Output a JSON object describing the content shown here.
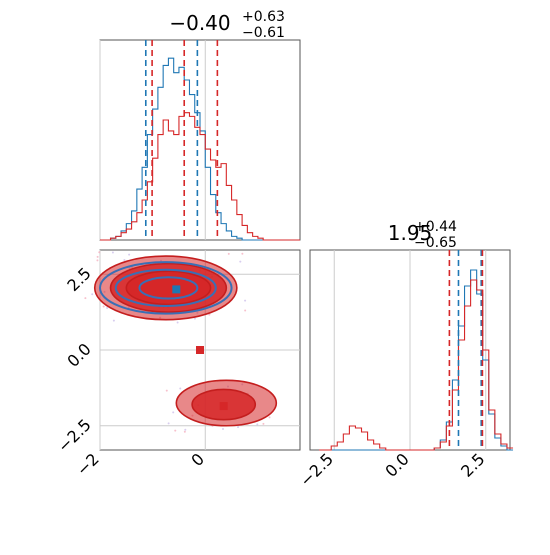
{
  "chart_data": {
    "type": "corner",
    "parameters": 2,
    "colors": {
      "series_a": "#d62728",
      "series_b": "#1f77b4"
    },
    "grid": true,
    "panels": {
      "hist_x": {
        "title_main": "−0.40",
        "title_plus": "+0.63",
        "title_minus": "−0.61",
        "xlim": [
          -2.0,
          1.8
        ],
        "vlines_a": [
          -1.01,
          -0.4,
          0.23
        ],
        "vlines_b": [
          -1.13,
          -0.15
        ],
        "series_a": {
          "x": [
            -2.0,
            -1.9,
            -1.8,
            -1.7,
            -1.6,
            -1.5,
            -1.4,
            -1.3,
            -1.2,
            -1.1,
            -1.0,
            -0.9,
            -0.8,
            -0.7,
            -0.6,
            -0.5,
            -0.4,
            -0.3,
            -0.2,
            -0.1,
            0.0,
            0.1,
            0.2,
            0.3,
            0.4,
            0.5,
            0.6,
            0.7,
            0.8,
            0.9,
            1.0,
            1.1,
            1.2,
            1.3,
            1.4,
            1.5,
            1.6,
            1.7
          ],
          "y": [
            0,
            0,
            1,
            2,
            4,
            6,
            10,
            15,
            22,
            32,
            45,
            58,
            66,
            60,
            58,
            68,
            70,
            68,
            62,
            58,
            50,
            44,
            40,
            42,
            30,
            22,
            14,
            8,
            4,
            2,
            1,
            0,
            0,
            0,
            0,
            0,
            0,
            0
          ]
        },
        "series_b": {
          "x": [
            -2.0,
            -1.9,
            -1.8,
            -1.7,
            -1.6,
            -1.5,
            -1.4,
            -1.3,
            -1.2,
            -1.1,
            -1.0,
            -0.9,
            -0.8,
            -0.7,
            -0.6,
            -0.5,
            -0.4,
            -0.3,
            -0.2,
            -0.1,
            0.0,
            0.1,
            0.2,
            0.3,
            0.4,
            0.5,
            0.6,
            0.7,
            0.8,
            0.9,
            1.0,
            1.1,
            1.2,
            1.3,
            1.4,
            1.5,
            1.6,
            1.7
          ],
          "y": [
            0,
            0,
            1,
            2,
            5,
            9,
            16,
            28,
            40,
            58,
            72,
            84,
            96,
            100,
            92,
            95,
            88,
            80,
            70,
            60,
            40,
            25,
            15,
            9,
            5,
            2,
            1,
            0,
            0,
            0,
            0,
            0,
            0,
            0,
            0,
            0,
            0,
            0
          ]
        }
      },
      "hist_y": {
        "title_main": "1.95",
        "title_plus": "+0.44",
        "title_minus": "−0.65",
        "xlim": [
          -3.3,
          3.3
        ],
        "tick_labels": [
          "−2.5",
          "0.0",
          "2.5"
        ],
        "ticks": [
          -2.5,
          0.0,
          2.5
        ],
        "vlines_a": [
          1.3,
          2.39
        ],
        "vlines_b": [
          1.6,
          2.35
        ],
        "series_a": {
          "x": [
            -3.0,
            -2.8,
            -2.6,
            -2.4,
            -2.2,
            -2.0,
            -1.8,
            -1.6,
            -1.4,
            -1.2,
            -1.0,
            -0.8,
            -0.6,
            -0.4,
            -0.2,
            0.0,
            0.2,
            0.4,
            0.6,
            0.8,
            1.0,
            1.2,
            1.4,
            1.6,
            1.8,
            2.0,
            2.2,
            2.4,
            2.6,
            2.8,
            3.0,
            3.2
          ],
          "y": [
            0,
            0,
            2,
            4,
            8,
            12,
            11,
            9,
            5,
            3,
            1,
            0,
            0,
            0,
            0,
            0,
            0,
            0,
            0,
            1,
            4,
            12,
            30,
            55,
            72,
            85,
            80,
            50,
            20,
            8,
            3,
            1
          ]
        },
        "series_b": {
          "x": [
            -3.0,
            -2.8,
            -2.6,
            -2.4,
            -2.2,
            -2.0,
            -1.8,
            -1.6,
            -1.4,
            -1.2,
            -1.0,
            -0.8,
            -0.6,
            -0.4,
            -0.2,
            0.0,
            0.2,
            0.4,
            0.6,
            0.8,
            1.0,
            1.2,
            1.4,
            1.6,
            1.8,
            2.0,
            2.2,
            2.4,
            2.6,
            2.8,
            3.0,
            3.2
          ],
          "y": [
            0,
            0,
            0,
            0,
            0,
            0,
            0,
            0,
            0,
            0,
            0,
            0,
            0,
            0,
            0,
            0,
            0,
            0,
            0,
            1,
            5,
            14,
            35,
            62,
            82,
            90,
            78,
            45,
            18,
            6,
            2,
            0
          ]
        }
      },
      "scatter": {
        "xlim": [
          -2.0,
          1.8
        ],
        "ylim": [
          -3.3,
          3.3
        ],
        "x_tick_labels": [
          "−2",
          "0"
        ],
        "x_ticks": [
          -2,
          0
        ],
        "y_tick_labels": [
          "−2.5",
          "0.0",
          "2.5"
        ],
        "y_ticks": [
          -2.5,
          0.0,
          2.5
        ],
        "markers": [
          {
            "x": -0.55,
            "y": 2.0,
            "color": "#1f77b4"
          },
          {
            "x": -0.1,
            "y": 0.0,
            "color": "#d62728"
          },
          {
            "x": 0.35,
            "y": -1.85,
            "color": "#d62728"
          }
        ],
        "contours_a": [
          {
            "cx": -0.75,
            "cy": 2.05,
            "rx": 1.35,
            "ry": 1.05
          },
          {
            "cx": -0.7,
            "cy": 2.05,
            "rx": 1.1,
            "ry": 0.8
          },
          {
            "cx": -0.7,
            "cy": 2.05,
            "rx": 0.8,
            "ry": 0.55
          },
          {
            "cx": 0.4,
            "cy": -1.75,
            "rx": 0.95,
            "ry": 0.75
          },
          {
            "cx": 0.35,
            "cy": -1.8,
            "rx": 0.6,
            "ry": 0.5
          }
        ],
        "contours_b": [
          {
            "cx": -0.75,
            "cy": 2.05,
            "rx": 1.25,
            "ry": 0.85
          },
          {
            "cx": -0.75,
            "cy": 2.05,
            "rx": 0.95,
            "ry": 0.6
          },
          {
            "cx": -0.7,
            "cy": 2.05,
            "rx": 0.55,
            "ry": 0.35
          }
        ]
      }
    }
  }
}
